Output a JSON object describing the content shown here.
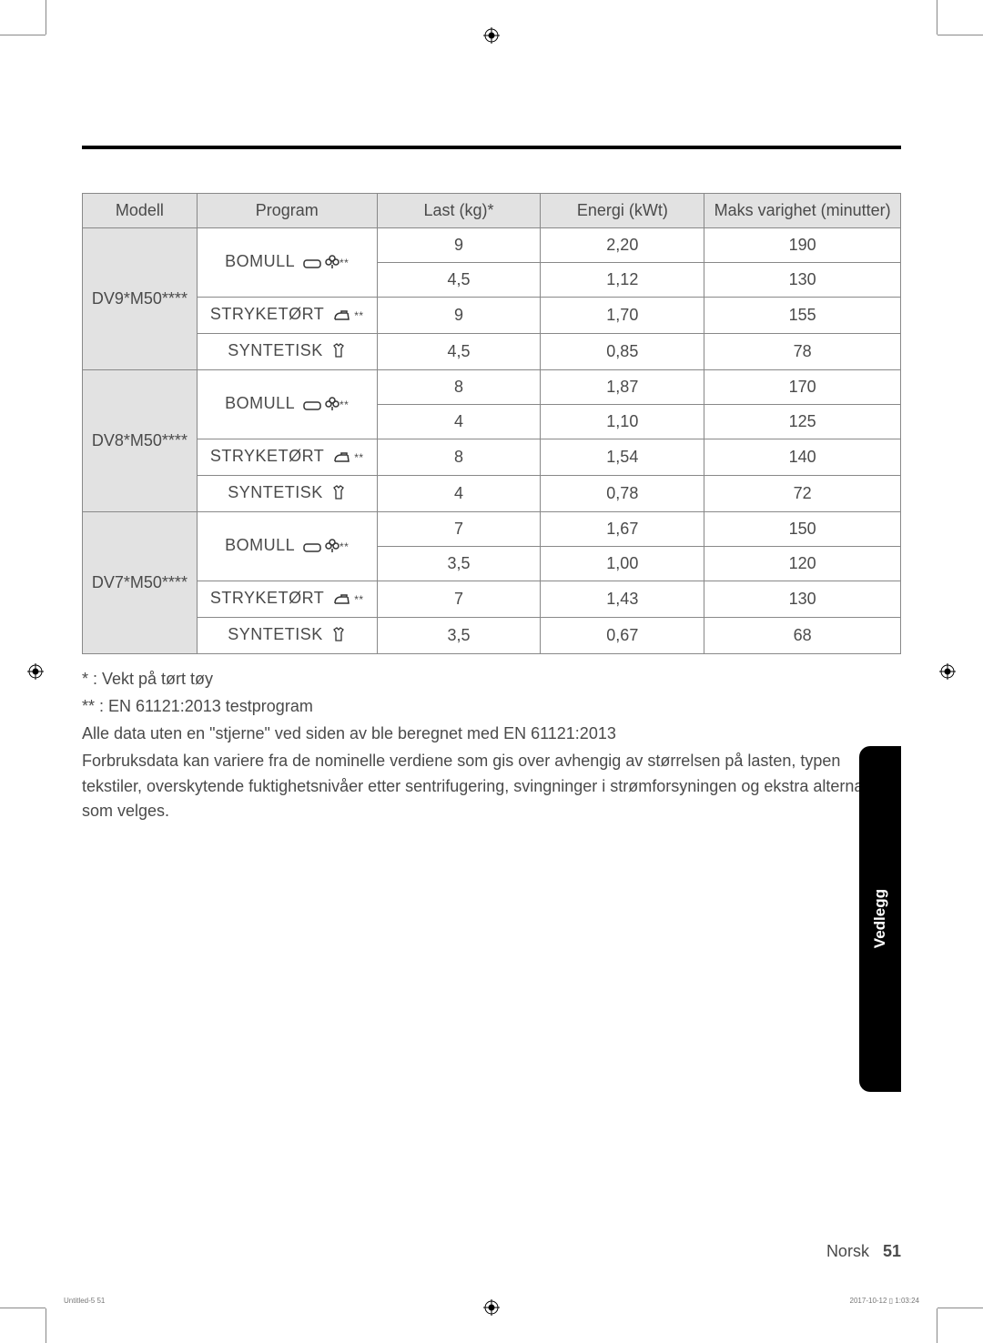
{
  "table": {
    "headers": [
      "Modell",
      "Program",
      "Last (kg)*",
      "Energi (kWt)",
      "Maks varighet (minutter)"
    ],
    "groups": [
      {
        "model": "DV9*M50****",
        "rows": [
          {
            "program": "BOMULL",
            "icons": "bomull",
            "load": "9",
            "energy": "2,20",
            "duration": "190"
          },
          {
            "program": "",
            "icons": "",
            "load": "4,5",
            "energy": "1,12",
            "duration": "130"
          },
          {
            "program": "STRYKETØRT",
            "icons": "iron",
            "load": "9",
            "energy": "1,70",
            "duration": "155"
          },
          {
            "program": "SYNTETISK",
            "icons": "shirt",
            "load": "4,5",
            "energy": "0,85",
            "duration": "78"
          }
        ]
      },
      {
        "model": "DV8*M50****",
        "rows": [
          {
            "program": "BOMULL",
            "icons": "bomull",
            "load": "8",
            "energy": "1,87",
            "duration": "170"
          },
          {
            "program": "",
            "icons": "",
            "load": "4",
            "energy": "1,10",
            "duration": "125"
          },
          {
            "program": "STRYKETØRT",
            "icons": "iron",
            "load": "8",
            "energy": "1,54",
            "duration": "140"
          },
          {
            "program": "SYNTETISK",
            "icons": "shirt",
            "load": "4",
            "energy": "0,78",
            "duration": "72"
          }
        ]
      },
      {
        "model": "DV7*M50****",
        "rows": [
          {
            "program": "BOMULL",
            "icons": "bomull",
            "load": "7",
            "energy": "1,67",
            "duration": "150"
          },
          {
            "program": "",
            "icons": "",
            "load": "3,5",
            "energy": "1,00",
            "duration": "120"
          },
          {
            "program": "STRYKETØRT",
            "icons": "iron",
            "load": "7",
            "energy": "1,43",
            "duration": "130"
          },
          {
            "program": "SYNTETISK",
            "icons": "shirt",
            "load": "3,5",
            "energy": "0,67",
            "duration": "68"
          }
        ]
      }
    ]
  },
  "notes": {
    "line1": "* : Vekt på tørt tøy",
    "line2": "** : EN 61121:2013 testprogram",
    "line3": "Alle data uten en \"stjerne\" ved siden av ble beregnet med EN 61121:2013",
    "line4": "Forbruksdata kan variere fra de nominelle verdiene som gis over avhengig av størrelsen på lasten, typen tekstiler, overskytende fuktighetsnivåer etter sentrifugering, svingninger i strømforsyningen og ekstra alternativer som velges."
  },
  "sideTab": "Vedlegg",
  "footer": {
    "lang": "Norsk",
    "page": "51"
  },
  "tiny": {
    "left": "Untitled-5   51",
    "right": "2017-10-12   ▯ 1:03:24"
  },
  "colors": {
    "headerBg": "#e2e2e2",
    "border": "#888888",
    "text": "#4a4a4a",
    "tab": "#000000"
  }
}
